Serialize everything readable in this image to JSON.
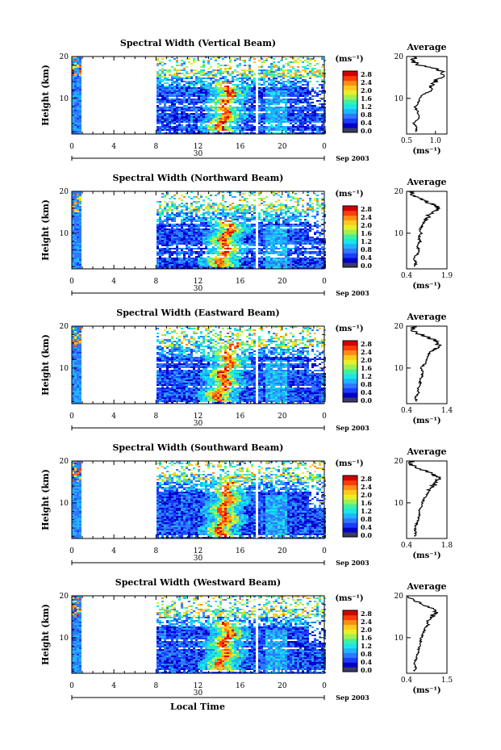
{
  "figure": {
    "xlabel": "Local Time",
    "date_label": "Sep 2003",
    "day_label": "30",
    "colorbar_unit": "(ms⁻¹)",
    "colorbar_ticks": [
      "0.0",
      "0.4",
      "0.8",
      "1.2",
      "1.6",
      "2.0",
      "2.4",
      "2.8"
    ],
    "colorbar_colors": [
      "#3a3a66",
      "#0000c8",
      "#1a3cff",
      "#2f78ff",
      "#1eb4ff",
      "#19e6e6",
      "#40f0a0",
      "#a0f050",
      "#e6f028",
      "#ffc81e",
      "#ff8c14",
      "#ff3c0a",
      "#d20000"
    ],
    "average_title": "Average",
    "average_xunit": "(ms⁻¹)"
  },
  "chart_data": [
    {
      "type": "heatmap",
      "title": "Spectral Width (Vertical Beam)",
      "ylabel": "Height (km)",
      "x_ticks": [
        "0",
        "4",
        "8",
        "12",
        "16",
        "20",
        "0"
      ],
      "xlim": [
        0,
        24
      ],
      "y_ticks": [
        "10",
        "20"
      ],
      "ylim": [
        1.5,
        20
      ],
      "cbar_range": [
        0,
        2.8
      ],
      "no_data_hours": [
        [
          1,
          8
        ]
      ],
      "gap_hour": 17.7,
      "enhanced_band": {
        "center_hours": [
          14.2,
          15.0
        ],
        "heights": [
          2,
          14
        ]
      },
      "average_profile": {
        "xlim": [
          0.5,
          1.2
        ],
        "x_ticks": [
          "0.5",
          "1.0"
        ],
        "heights": [
          2,
          3,
          4,
          5,
          6,
          7,
          8,
          9,
          10,
          11,
          12,
          13,
          14,
          15,
          16,
          17,
          18,
          19,
          20
        ],
        "values": [
          0.66,
          0.68,
          0.62,
          0.7,
          0.72,
          0.68,
          0.65,
          0.7,
          0.72,
          0.8,
          0.95,
          0.9,
          1.0,
          1.1,
          1.15,
          1.05,
          0.7,
          0.6,
          0.65
        ]
      }
    },
    {
      "type": "heatmap",
      "title": "Spectral Width (Northward Beam)",
      "ylabel": "Height (km)",
      "x_ticks": [
        "0",
        "4",
        "8",
        "12",
        "16",
        "20",
        "0"
      ],
      "xlim": [
        0,
        24
      ],
      "y_ticks": [
        "10",
        "20"
      ],
      "ylim": [
        1.5,
        20
      ],
      "cbar_range": [
        0,
        2.8
      ],
      "no_data_hours": [
        [
          1,
          8
        ]
      ],
      "gap_hour": 17.7,
      "enhanced_band": {
        "center_hours": [
          14.2,
          15.0
        ],
        "heights": [
          2,
          13
        ]
      },
      "average_profile": {
        "xlim": [
          0.4,
          1.9
        ],
        "x_ticks": [
          "0.4",
          "1.9"
        ],
        "heights": [
          2,
          3,
          4,
          5,
          6,
          7,
          8,
          9,
          10,
          11,
          12,
          13,
          14,
          15,
          16,
          17,
          18,
          19,
          20
        ],
        "values": [
          0.7,
          0.75,
          0.65,
          0.8,
          0.85,
          0.8,
          0.9,
          0.85,
          0.95,
          0.9,
          1.0,
          1.1,
          1.2,
          1.4,
          1.6,
          1.3,
          1.0,
          0.6,
          0.55
        ]
      }
    },
    {
      "type": "heatmap",
      "title": "Spectral Width (Eastward Beam)",
      "ylabel": "Height (km)",
      "x_ticks": [
        "0",
        "4",
        "8",
        "12",
        "16",
        "20",
        "0"
      ],
      "xlim": [
        0,
        24
      ],
      "y_ticks": [
        "10",
        "20"
      ],
      "ylim": [
        1.5,
        20
      ],
      "cbar_range": [
        0,
        2.8
      ],
      "no_data_hours": [
        [
          1,
          8
        ]
      ],
      "gap_hour": 17.7,
      "enhanced_band": {
        "center_hours": [
          14.0,
          15.2
        ],
        "heights": [
          2,
          16
        ]
      },
      "average_profile": {
        "xlim": [
          0.4,
          1.4
        ],
        "x_ticks": [
          "0.4",
          "1.4"
        ],
        "heights": [
          2,
          3,
          4,
          5,
          6,
          7,
          8,
          9,
          10,
          11,
          12,
          13,
          14,
          15,
          16,
          17,
          18,
          19,
          20
        ],
        "values": [
          0.65,
          0.62,
          0.7,
          0.68,
          0.75,
          0.72,
          0.78,
          0.8,
          0.75,
          0.85,
          0.9,
          0.95,
          1.0,
          1.15,
          1.2,
          1.0,
          0.75,
          0.55,
          0.6
        ]
      }
    },
    {
      "type": "heatmap",
      "title": "Spectral Width (Southward Beam)",
      "ylabel": "Height (km)",
      "x_ticks": [
        "0",
        "4",
        "8",
        "12",
        "16",
        "20",
        "0"
      ],
      "xlim": [
        0,
        24
      ],
      "y_ticks": [
        "10",
        "20"
      ],
      "ylim": [
        1.5,
        20
      ],
      "cbar_range": [
        0,
        2.8
      ],
      "no_data_hours": [
        [
          1,
          8
        ]
      ],
      "gap_hour": 17.7,
      "enhanced_band": {
        "center_hours": [
          14.2,
          15.0
        ],
        "heights": [
          2,
          15
        ]
      },
      "average_profile": {
        "xlim": [
          0.4,
          1.8
        ],
        "x_ticks": [
          "0.4",
          "1.8"
        ],
        "heights": [
          2,
          3,
          4,
          5,
          6,
          7,
          8,
          9,
          10,
          11,
          12,
          13,
          14,
          15,
          16,
          17,
          18,
          19,
          20
        ],
        "values": [
          0.7,
          0.72,
          0.68,
          0.75,
          0.8,
          0.85,
          0.82,
          0.9,
          0.95,
          1.0,
          1.1,
          1.2,
          1.3,
          1.45,
          1.5,
          1.25,
          0.9,
          0.6,
          0.55
        ]
      }
    },
    {
      "type": "heatmap",
      "title": "Spectral Width (Westward Beam)",
      "ylabel": "Height (km)",
      "x_ticks": [
        "0",
        "4",
        "8",
        "12",
        "16",
        "20",
        "0"
      ],
      "xlim": [
        0,
        24
      ],
      "y_ticks": [
        "10",
        "20"
      ],
      "ylim": [
        1.5,
        20
      ],
      "cbar_range": [
        0,
        2.8
      ],
      "no_data_hours": [
        [
          1,
          8
        ]
      ],
      "gap_hour": 17.7,
      "enhanced_band": {
        "center_hours": [
          14.2,
          15.0
        ],
        "heights": [
          2,
          14
        ]
      },
      "average_profile": {
        "xlim": [
          0.4,
          1.5
        ],
        "x_ticks": [
          "0.4",
          "1.5"
        ],
        "heights": [
          2,
          3,
          4,
          5,
          6,
          7,
          8,
          9,
          10,
          11,
          12,
          13,
          14,
          15,
          16,
          17,
          18,
          19,
          20
        ],
        "values": [
          0.62,
          0.65,
          0.6,
          0.68,
          0.7,
          0.72,
          0.75,
          0.78,
          0.8,
          0.85,
          0.9,
          0.95,
          1.0,
          1.1,
          1.2,
          1.05,
          0.8,
          0.55,
          0.5
        ]
      }
    }
  ]
}
